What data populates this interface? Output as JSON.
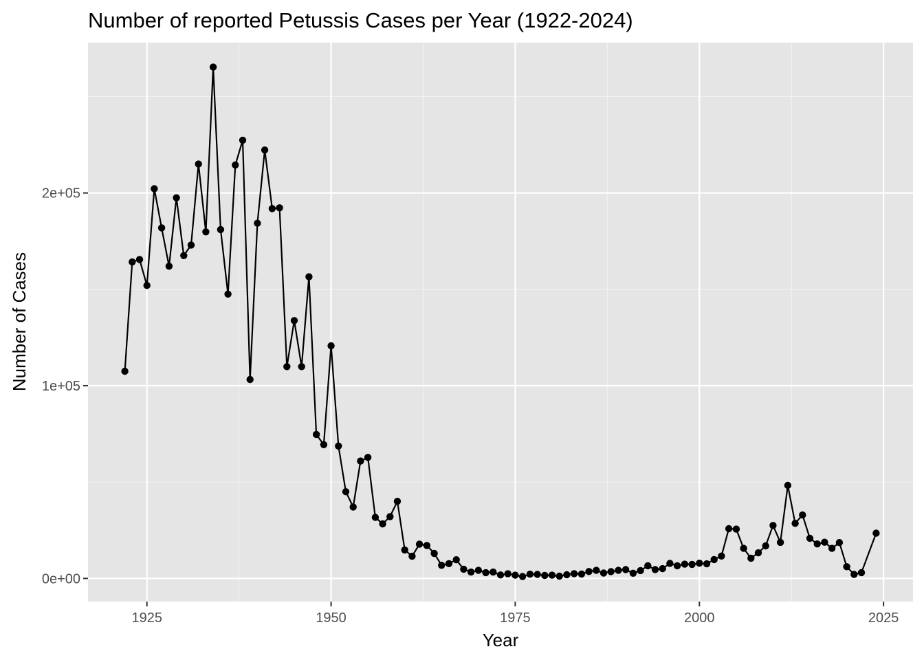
{
  "chart_data": {
    "type": "line",
    "title": "Number of reported Petussis Cases per Year (1922-2024)",
    "xlabel": "Year",
    "ylabel": "Number of Cases",
    "xlim": [
      1917,
      2029
    ],
    "ylim": [
      -12000,
      278000
    ],
    "x_ticks": [
      1925,
      1950,
      1975,
      2000,
      2025
    ],
    "x_tick_labels": [
      "1925",
      "1950",
      "1975",
      "2000",
      "2025"
    ],
    "y_ticks": [
      0,
      100000,
      200000
    ],
    "y_tick_labels": [
      "0e+00",
      "1e+05",
      "2e+05"
    ],
    "y_minor_ticks": [
      50000,
      150000,
      250000
    ],
    "x_minor_ticks": [
      1937.5,
      1962.5,
      1987.5,
      2012.5
    ],
    "grid": true,
    "marker": "point",
    "x": [
      1922,
      1923,
      1924,
      1925,
      1926,
      1927,
      1928,
      1929,
      1930,
      1931,
      1932,
      1933,
      1934,
      1935,
      1936,
      1937,
      1938,
      1939,
      1940,
      1941,
      1942,
      1943,
      1944,
      1945,
      1946,
      1947,
      1948,
      1949,
      1950,
      1951,
      1952,
      1953,
      1954,
      1955,
      1956,
      1957,
      1958,
      1959,
      1960,
      1961,
      1962,
      1963,
      1964,
      1965,
      1966,
      1967,
      1968,
      1969,
      1970,
      1971,
      1972,
      1973,
      1974,
      1975,
      1976,
      1977,
      1978,
      1979,
      1980,
      1981,
      1982,
      1983,
      1984,
      1985,
      1986,
      1987,
      1988,
      1989,
      1990,
      1991,
      1992,
      1993,
      1994,
      1995,
      1996,
      1997,
      1998,
      1999,
      2000,
      2001,
      2002,
      2003,
      2004,
      2005,
      2006,
      2007,
      2008,
      2009,
      2010,
      2011,
      2012,
      2013,
      2014,
      2015,
      2016,
      2017,
      2018,
      2019,
      2020,
      2021,
      2022,
      2024
    ],
    "y": [
      107500,
      164200,
      165500,
      152000,
      202200,
      181900,
      162000,
      197500,
      167500,
      173000,
      215000,
      179800,
      265300,
      181000,
      147500,
      214500,
      227400,
      103200,
      184300,
      222300,
      191900,
      192300,
      109900,
      133800,
      109900,
      156500,
      74700,
      69400,
      120700,
      68700,
      45000,
      37100,
      60900,
      62800,
      31700,
      28300,
      32100,
      40000,
      14800,
      11500,
      17800,
      17100,
      13000,
      6800,
      7700,
      9700,
      4800,
      3300,
      4200,
      3000,
      3300,
      1800,
      2400,
      1700,
      1000,
      2200,
      2100,
      1600,
      1700,
      1200,
      1900,
      2500,
      2300,
      3600,
      4200,
      2800,
      3500,
      4200,
      4600,
      2700,
      4100,
      6600,
      4600,
      5100,
      7800,
      6600,
      7400,
      7300,
      7900,
      7600,
      9800,
      11600,
      25800,
      25600,
      15600,
      10500,
      13300,
      16900,
      27500,
      18700,
      48300,
      28600,
      32900,
      20800,
      17900,
      18800,
      15600,
      18600,
      6100,
      2100,
      3000,
      23500
    ]
  }
}
